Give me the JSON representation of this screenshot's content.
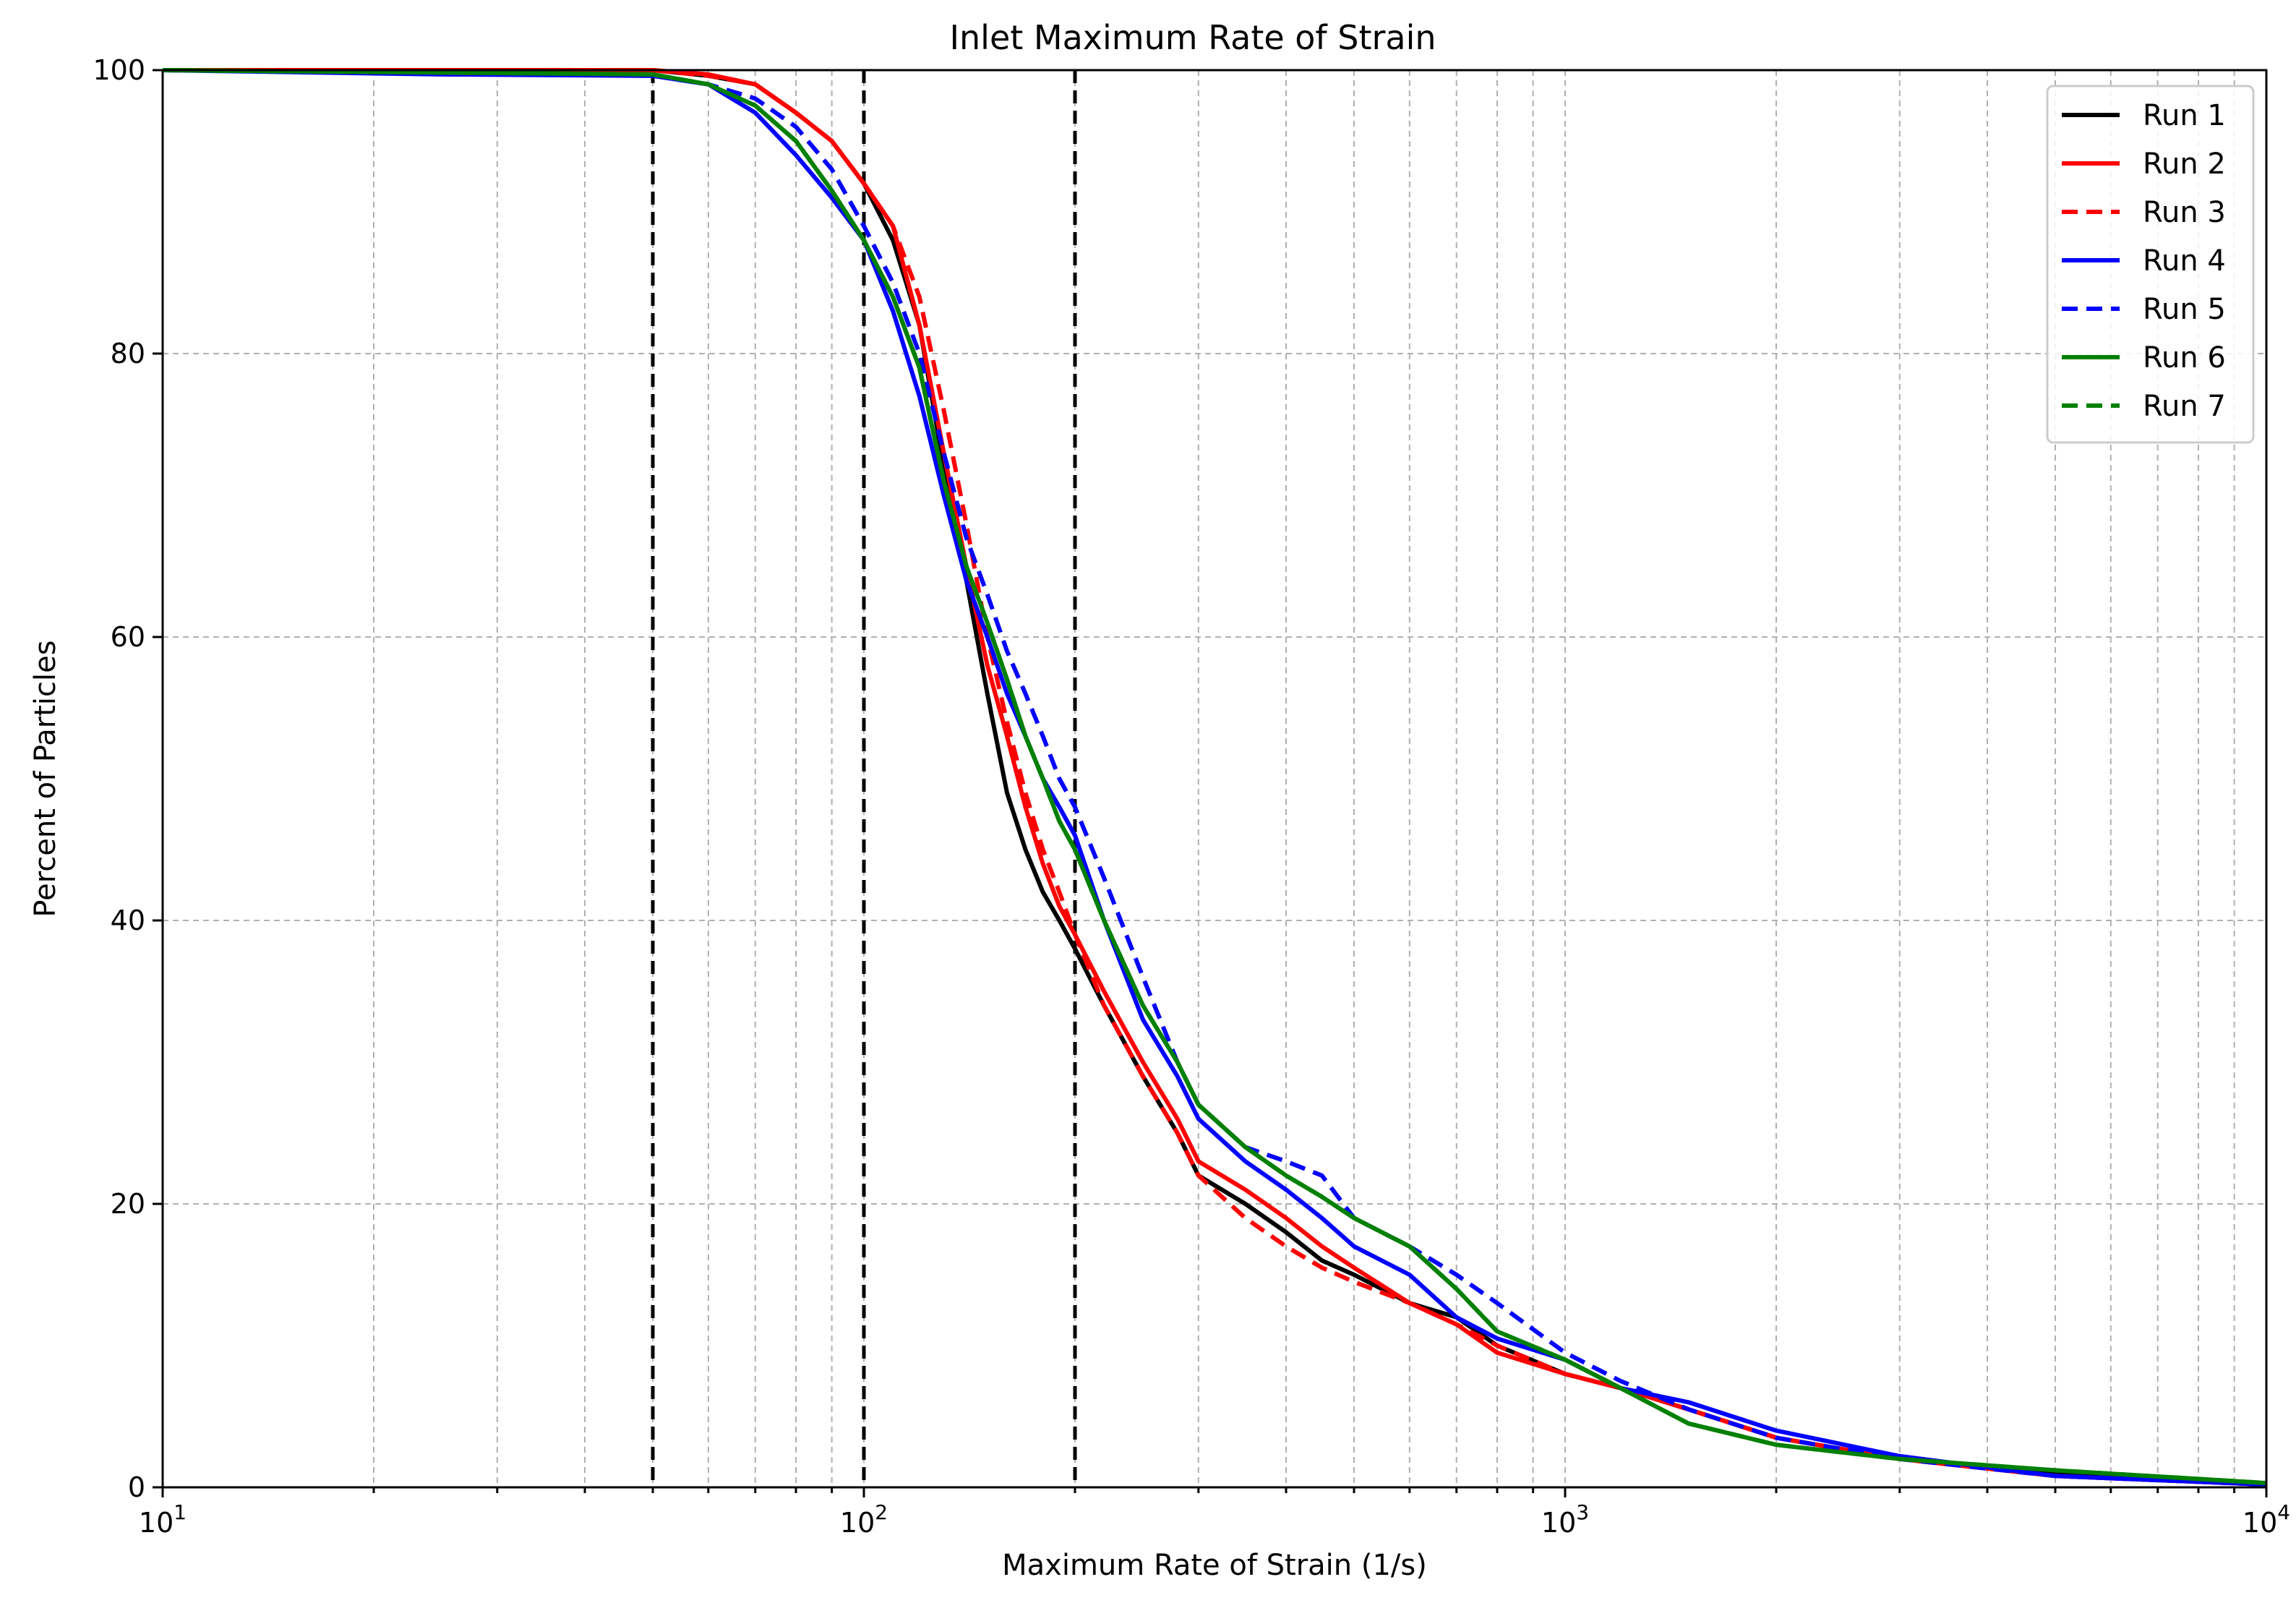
{
  "chart_data": {
    "type": "line",
    "title": "Inlet Maximum Rate of Strain",
    "xlabel": "Maximum Rate of Strain (1/s)",
    "ylabel": "Percent of Particles",
    "xscale": "log",
    "xlim": [
      10,
      10000
    ],
    "ylim": [
      0,
      100
    ],
    "x_ticks": [
      {
        "value": 10,
        "base": "10",
        "exp": "1"
      },
      {
        "value": 100,
        "base": "10",
        "exp": "2"
      },
      {
        "value": 1000,
        "base": "10",
        "exp": "3"
      },
      {
        "value": 10000,
        "base": "10",
        "exp": "4"
      }
    ],
    "y_ticks": [
      {
        "value": 0,
        "label": "0"
      },
      {
        "value": 20,
        "label": "20"
      },
      {
        "value": 40,
        "label": "40"
      },
      {
        "value": 60,
        "label": "60"
      },
      {
        "value": 80,
        "label": "80"
      },
      {
        "value": 100,
        "label": "100"
      }
    ],
    "grid": true,
    "legend_position": "top-right",
    "vertical_reference_lines": [
      50,
      100,
      200
    ],
    "series": [
      {
        "name": "Run 1",
        "color": "#000000",
        "dash": "solid",
        "x": [
          10,
          50,
          60,
          70,
          80,
          90,
          100,
          110,
          120,
          130,
          140,
          150,
          160,
          170,
          180,
          190,
          200,
          220,
          250,
          280,
          300,
          350,
          400,
          450,
          500,
          600,
          700,
          800,
          1000,
          1200,
          1500,
          2000,
          3000,
          5000,
          10000
        ],
        "y": [
          100,
          100,
          99.6,
          99,
          97,
          95,
          92,
          88,
          82,
          72,
          64,
          56,
          49,
          45,
          42,
          40,
          38,
          34,
          29,
          25,
          22,
          20,
          18,
          16,
          15,
          13,
          12,
          10,
          8,
          7,
          5.5,
          3.5,
          2,
          1,
          0.2
        ]
      },
      {
        "name": "Run 2",
        "color": "#ff0000",
        "dash": "solid",
        "x": [
          10,
          50,
          60,
          70,
          80,
          90,
          100,
          110,
          120,
          130,
          140,
          150,
          160,
          170,
          180,
          190,
          200,
          220,
          250,
          280,
          300,
          350,
          400,
          450,
          500,
          600,
          700,
          800,
          1000,
          1200,
          1500,
          2000,
          3000,
          5000,
          10000
        ],
        "y": [
          100,
          100,
          99.7,
          99,
          97,
          95,
          92,
          89,
          82,
          73,
          65,
          58,
          53,
          48,
          44,
          41,
          39,
          35,
          30,
          26,
          23,
          21,
          19,
          17,
          15.5,
          13,
          11.5,
          9.5,
          8,
          7,
          5.5,
          3.5,
          2,
          0.8,
          0.2
        ]
      },
      {
        "name": "Run 3",
        "color": "#ff0000",
        "dash": "dashed",
        "x": [
          10,
          50,
          60,
          70,
          80,
          90,
          100,
          110,
          120,
          130,
          140,
          150,
          160,
          170,
          180,
          190,
          200,
          220,
          250,
          280,
          300,
          350,
          400,
          450,
          500,
          600,
          700,
          800,
          1000,
          1200,
          1500,
          2000,
          3000,
          5000,
          10000
        ],
        "y": [
          100,
          100,
          99.6,
          99,
          97,
          95,
          92,
          89,
          84,
          76,
          68,
          60,
          54,
          49,
          45,
          42,
          39,
          34,
          29,
          25,
          22,
          19,
          17,
          15.5,
          14.5,
          13,
          11.5,
          10,
          8,
          7,
          5.5,
          3.5,
          2,
          0.8,
          0.2
        ]
      },
      {
        "name": "Run 4",
        "color": "#0000ff",
        "dash": "solid",
        "x": [
          10,
          25,
          50,
          60,
          70,
          80,
          90,
          100,
          110,
          120,
          130,
          140,
          150,
          160,
          170,
          180,
          190,
          200,
          220,
          250,
          280,
          300,
          350,
          400,
          450,
          500,
          600,
          700,
          800,
          1000,
          1200,
          1500,
          2000,
          3000,
          5000,
          10000
        ],
        "y": [
          100,
          99.7,
          99.6,
          99,
          97,
          94,
          91,
          88,
          83,
          77,
          70,
          64,
          60,
          56,
          53,
          50,
          48,
          46,
          40,
          33,
          29,
          26,
          23,
          21,
          19,
          17,
          15,
          12,
          10.5,
          9,
          7,
          6,
          4,
          2.2,
          0.8,
          0.2
        ]
      },
      {
        "name": "Run 5",
        "color": "#0000ff",
        "dash": "dashed",
        "x": [
          10,
          50,
          60,
          70,
          80,
          90,
          100,
          110,
          120,
          130,
          140,
          150,
          160,
          170,
          180,
          190,
          200,
          220,
          250,
          280,
          300,
          350,
          400,
          450,
          500,
          600,
          700,
          800,
          1000,
          1200,
          1500,
          2000,
          3000,
          5000,
          10000
        ],
        "y": [
          100,
          99.6,
          99,
          98,
          96,
          93,
          89,
          85,
          80,
          73,
          67,
          63,
          59,
          56,
          53,
          50,
          48,
          43,
          36,
          30,
          27,
          24,
          23,
          22,
          19,
          17,
          15,
          13,
          9.5,
          7.5,
          5.5,
          3.5,
          2,
          0.8,
          0.2
        ]
      },
      {
        "name": "Run 6",
        "color": "#008000",
        "dash": "solid",
        "x": [
          10,
          50,
          60,
          70,
          80,
          90,
          100,
          110,
          120,
          130,
          140,
          150,
          160,
          170,
          180,
          190,
          200,
          220,
          250,
          280,
          300,
          350,
          400,
          450,
          500,
          600,
          700,
          800,
          1000,
          1200,
          1500,
          2000,
          3000,
          5000,
          10000
        ],
        "y": [
          100,
          99.7,
          99,
          97.5,
          95,
          91.5,
          88,
          84,
          79,
          71,
          65,
          61,
          57,
          53,
          50,
          47,
          45,
          40,
          34,
          30,
          27,
          24,
          22,
          20.5,
          19,
          17,
          14,
          11,
          9,
          7,
          4.5,
          3,
          2,
          1.2,
          0.3
        ]
      },
      {
        "name": "Run 7",
        "color": "#008000",
        "dash": "dashed",
        "x": [
          10,
          50,
          60,
          70,
          80,
          90,
          100,
          110,
          120,
          130,
          140,
          150,
          160,
          170,
          180,
          190,
          200,
          220,
          250,
          280,
          300,
          350,
          400,
          450,
          500,
          600,
          700,
          800,
          1000,
          1200,
          1500,
          2000,
          3000,
          5000,
          10000
        ],
        "y": [
          100,
          99.7,
          99,
          97.5,
          95,
          91.5,
          88,
          84,
          79,
          71,
          65,
          61,
          57,
          53,
          50,
          47,
          45,
          40,
          34,
          30,
          27,
          24,
          22,
          20.5,
          19,
          17,
          14,
          11,
          9,
          7,
          4.5,
          3,
          2,
          1.2,
          0.3
        ]
      }
    ]
  }
}
